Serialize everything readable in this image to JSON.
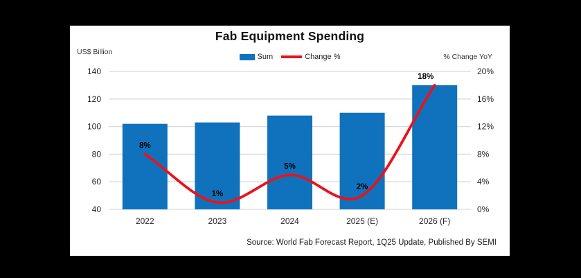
{
  "header": {
    "title": "Fab Equipment Spending"
  },
  "source_note": "Source: World Fab Forecast Report, 1Q25 Update, Published By SEMI",
  "colors": {
    "bar_blue": "#1072BC",
    "line_red": "#E8131C",
    "gridline": "#D9D9D9",
    "tick_text": "#262626",
    "panel_bg": "#FFFFFF",
    "page_bg": "#000000"
  },
  "chart_data": {
    "type": "bar+line combo",
    "title": "Fab Equipment Spending",
    "categories": [
      "2022",
      "2023",
      "2024",
      "2025 (E)",
      "2026 (F)"
    ],
    "series": [
      {
        "name": "Sum",
        "type": "bar",
        "axis": "left",
        "color": "#1072BC",
        "values": [
          102,
          103,
          108,
          110,
          130
        ]
      },
      {
        "name": "Change %",
        "type": "line",
        "axis": "right",
        "color": "#E8131C",
        "values": [
          8,
          1,
          5,
          2,
          18
        ],
        "point_labels": [
          "8%",
          "1%",
          "5%",
          "2%",
          "18%"
        ]
      }
    ],
    "left_axis": {
      "label": "US$ Billion",
      "min": 40,
      "max": 140,
      "tick_step": 20,
      "ticks": [
        "140",
        "120",
        "100",
        "80",
        "60",
        "40"
      ]
    },
    "right_axis": {
      "label": "% Change YoY",
      "min": 0,
      "max": 20,
      "tick_step": 4,
      "ticks": [
        "20%",
        "16%",
        "12%",
        "8%",
        "4%",
        "0%"
      ]
    },
    "grid": true,
    "legend_position": "top-center",
    "line_style": "smoothed"
  }
}
